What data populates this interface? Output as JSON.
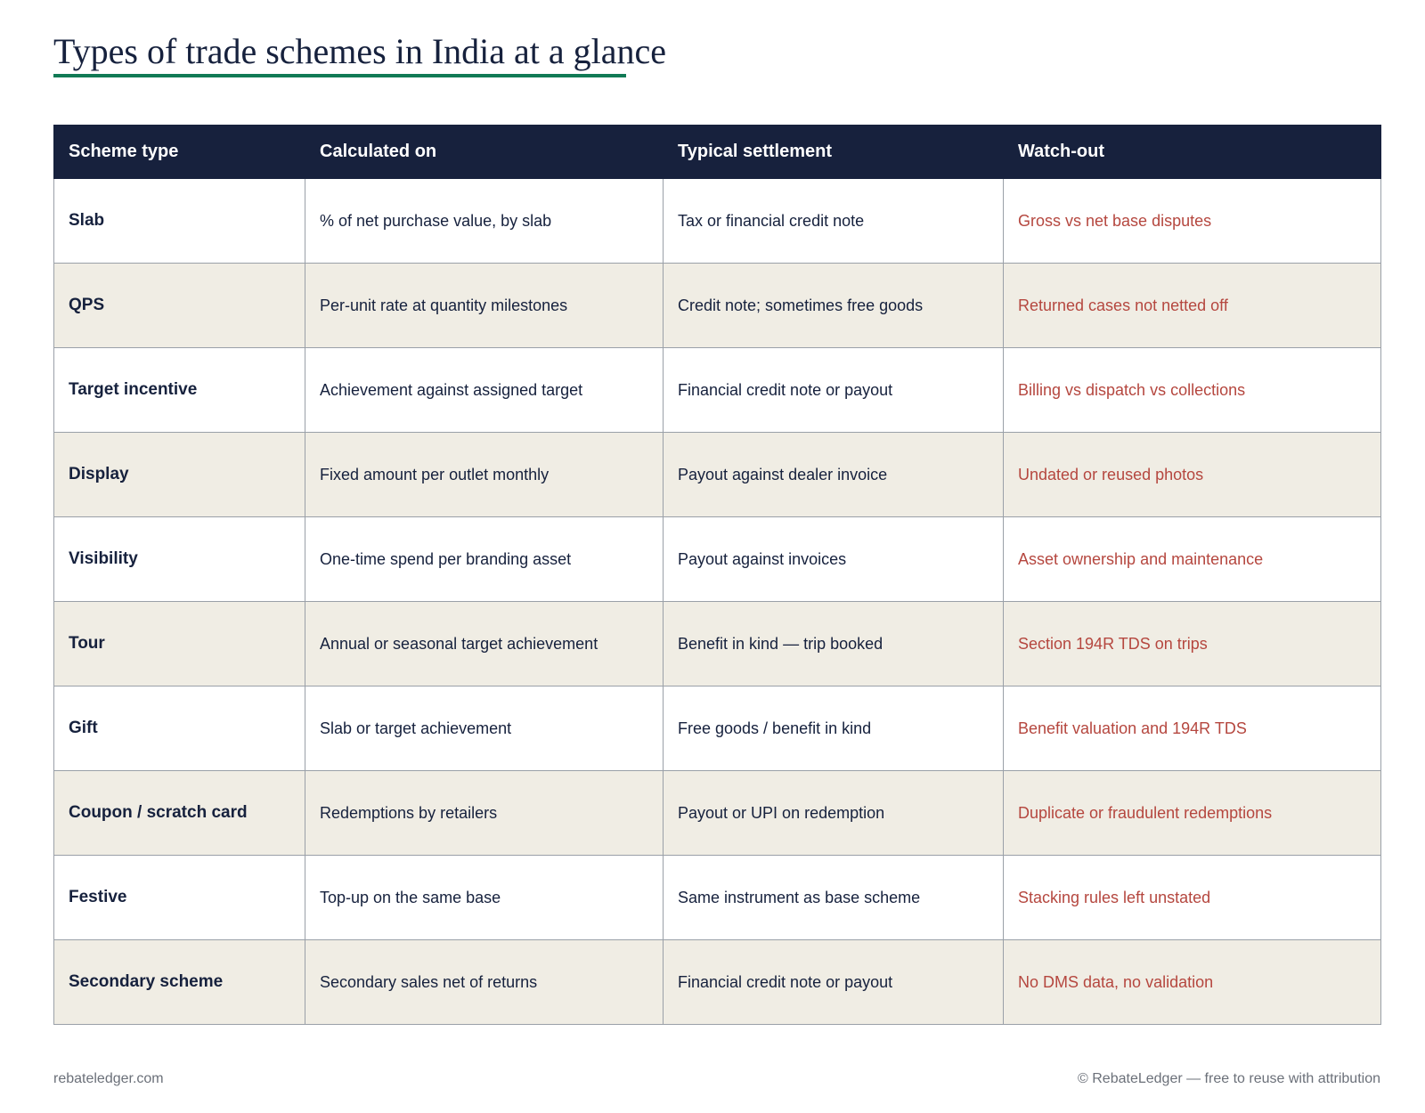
{
  "title": "Types of trade schemes in India at a glance",
  "colors": {
    "title_underline": "#117a55",
    "header_bg": "#17213d",
    "alt_row_bg": "#f0ede4",
    "watch_out_text": "#b5473f"
  },
  "table": {
    "headers": [
      "Scheme type",
      "Calculated on",
      "Typical settlement",
      "Watch-out"
    ],
    "rows": [
      [
        "Slab",
        "% of net purchase value, by slab",
        "Tax or financial credit note",
        "Gross vs net base disputes"
      ],
      [
        "QPS",
        "Per-unit rate at quantity milestones",
        "Credit note; sometimes free goods",
        "Returned cases not netted off"
      ],
      [
        "Target incentive",
        "Achievement against assigned target",
        "Financial credit note or payout",
        "Billing vs dispatch vs collections"
      ],
      [
        "Display",
        "Fixed amount per outlet monthly",
        "Payout against dealer invoice",
        "Undated or reused photos"
      ],
      [
        "Visibility",
        "One-time spend per branding asset",
        "Payout against invoices",
        "Asset ownership and maintenance"
      ],
      [
        "Tour",
        "Annual or seasonal target achievement",
        "Benefit in kind — trip booked",
        "Section 194R TDS on trips"
      ],
      [
        "Gift",
        "Slab or target achievement",
        "Free goods / benefit in kind",
        "Benefit valuation and 194R TDS"
      ],
      [
        "Coupon / scratch card",
        "Redemptions by retailers",
        "Payout or UPI on redemption",
        "Duplicate or fraudulent redemptions"
      ],
      [
        "Festive",
        "Top-up on the same base",
        "Same instrument as base scheme",
        "Stacking rules left unstated"
      ],
      [
        "Secondary scheme",
        "Secondary sales net of returns",
        "Financial credit note or payout",
        "No DMS data, no validation"
      ]
    ]
  },
  "footer": {
    "site": "rebateledger.com",
    "copyright": "© RebateLedger — free to reuse with attribution"
  }
}
